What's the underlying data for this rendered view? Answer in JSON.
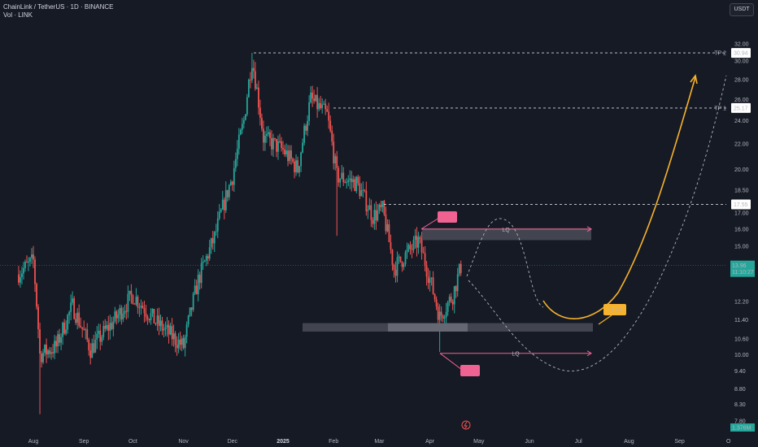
{
  "header": {
    "title": "ChainLink / TetherUS · 1D · BINANCE",
    "indicator": "Vol · LINK"
  },
  "toolbar": {
    "currency": "USDT"
  },
  "colors": {
    "up": "#26a69a",
    "down": "#ef5350",
    "background": "#161a25",
    "pink": "#f06292",
    "orange": "#f7b32b",
    "zone": "#4a4d57"
  },
  "chart_data": {
    "type": "candlestick",
    "title": "",
    "xlabel": "",
    "ylabel": "",
    "ylim": [
      7.5,
      33
    ],
    "y_scale": "log",
    "grid": false,
    "x_ticks": [
      "Aug",
      "Sep",
      "Oct",
      "Nov",
      "Dec",
      "2025",
      "Feb",
      "Mar",
      "Apr",
      "May",
      "Jun",
      "Jul",
      "Aug",
      "Sep",
      "O"
    ],
    "y_ticks": [
      "32.00",
      "30.00",
      "28.00",
      "26.00",
      "24.00",
      "22.00",
      "20.00",
      "18.50",
      "17.00",
      "16.00",
      "15.00",
      "14.00",
      "12.20",
      "11.40",
      "10.60",
      "10.00",
      "9.40",
      "8.80",
      "8.30",
      "7.80"
    ],
    "price_path": [
      {
        "date": "2024-07-22",
        "close": 13.5
      },
      {
        "date": "2024-08-01",
        "close": 14.2
      },
      {
        "date": "2024-08-05",
        "close": 10.0
      },
      {
        "date": "2024-08-15",
        "close": 10.3
      },
      {
        "date": "2024-08-25",
        "close": 12.0
      },
      {
        "date": "2024-09-05",
        "close": 10.2
      },
      {
        "date": "2024-09-20",
        "close": 11.4
      },
      {
        "date": "2024-10-01",
        "close": 12.5
      },
      {
        "date": "2024-10-15",
        "close": 11.3
      },
      {
        "date": "2024-11-01",
        "close": 10.3
      },
      {
        "date": "2024-11-10",
        "close": 13.2
      },
      {
        "date": "2024-11-20",
        "close": 15.5
      },
      {
        "date": "2024-12-01",
        "close": 19.5
      },
      {
        "date": "2024-12-08",
        "close": 24.0
      },
      {
        "date": "2024-12-13",
        "close": 30.2
      },
      {
        "date": "2024-12-20",
        "close": 22.5
      },
      {
        "date": "2025-01-01",
        "close": 21.5
      },
      {
        "date": "2025-01-10",
        "close": 20.0
      },
      {
        "date": "2025-01-18",
        "close": 26.0
      },
      {
        "date": "2025-01-28",
        "close": 24.5
      },
      {
        "date": "2025-02-03",
        "close": 19.5
      },
      {
        "date": "2025-02-15",
        "close": 19.0
      },
      {
        "date": "2025-02-25",
        "close": 16.8
      },
      {
        "date": "2025-03-03",
        "close": 17.2
      },
      {
        "date": "2025-03-10",
        "close": 13.8
      },
      {
        "date": "2025-03-25",
        "close": 15.3
      },
      {
        "date": "2025-04-07",
        "close": 11.5
      },
      {
        "date": "2025-04-15",
        "close": 12.5
      },
      {
        "date": "2025-04-20",
        "close": 13.9
      }
    ],
    "last_price": "13.96",
    "countdown": "11:10:27",
    "volume_label": "1.376M",
    "levels": [
      {
        "name": "TP 2",
        "value": "30.94"
      },
      {
        "name": "TP 1",
        "value": "25.17"
      },
      {
        "name": "",
        "value": "17.55"
      }
    ],
    "target_badge": "11.23",
    "zone_label_top": "LQ",
    "zone_label_bottom": "LQ"
  }
}
